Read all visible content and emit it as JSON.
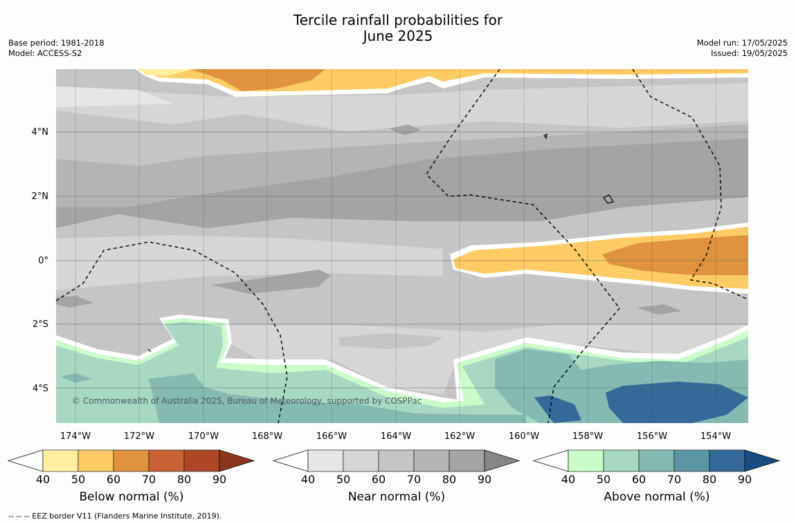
{
  "title_line1": "Tercile rainfall probabilities for",
  "title_line2": "June 2025",
  "base_period": "Base period: 1981-2018",
  "model": "Model: ACCESS-S2",
  "model_run": "Model run: 17/05/2025",
  "issued": "Issued: 19/05/2025",
  "copyright": "© Commonwealth of Australia 2025, Bureau of Meteorology, supported by COSPPac",
  "footer_note": "--  --  -- EEZ border V11 (Flanders Marine Institute, 2019).",
  "lon_labels": [
    "174°W",
    "172°W",
    "170°W",
    "168°W",
    "166°W",
    "164°W",
    "162°W",
    "160°W",
    "158°W",
    "156°W",
    "154°W"
  ],
  "lat_labels": [
    "4°N",
    "2°N",
    "0°",
    "2°S",
    "4°S"
  ],
  "legends": [
    {
      "label": "Below normal (%)",
      "ticks": [
        "40",
        "50",
        "60",
        "70",
        "80",
        "90"
      ],
      "colors": [
        "#fff0a0",
        "#fecb64",
        "#e0923f",
        "#cb6233",
        "#ad4726",
        "#8e3520"
      ]
    },
    {
      "label": "Near normal (%)",
      "ticks": [
        "40",
        "50",
        "60",
        "70",
        "80",
        "90"
      ],
      "colors": [
        "#e6e6e6",
        "#d6d6d6",
        "#c5c5c5",
        "#b4b4b4",
        "#a4a4a4",
        "#868686"
      ]
    },
    {
      "label": "Above normal (%)",
      "ticks": [
        "40",
        "50",
        "60",
        "70",
        "80",
        "90"
      ],
      "colors": [
        "#c9fcc9",
        "#a6d8c2",
        "#84bab2",
        "#5c96a2",
        "#336a99",
        "#184b84"
      ]
    }
  ]
}
